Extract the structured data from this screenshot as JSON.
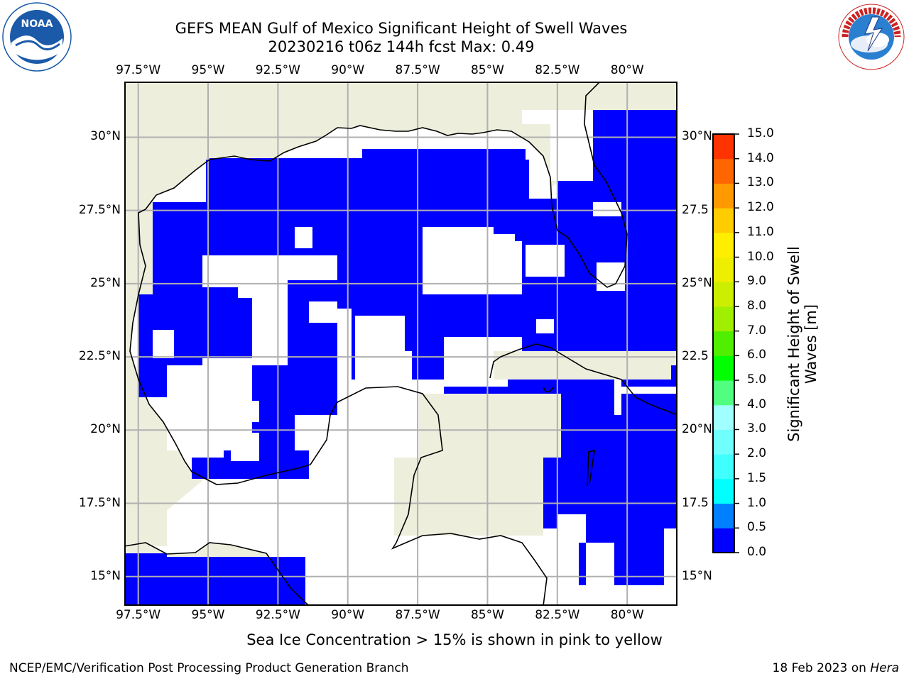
{
  "title": {
    "line1": "GEFS MEAN Gulf of Mexico Significant Height of Swell Waves",
    "line2": "20230216 t06z 144h fcst   Max: 0.49"
  },
  "map": {
    "lon_labels": [
      "97.5°W",
      "95°W",
      "92.5°W",
      "90°W",
      "87.5°W",
      "85°W",
      "82.5°W",
      "80°W"
    ],
    "lat_labels": [
      "30°N",
      "27.5°N",
      "25°N",
      "22.5°N",
      "20°N",
      "17.5°N",
      "15°N"
    ],
    "lat_labels_right": [
      "30°N",
      "27.5",
      "25°N",
      "22.5",
      "20°N",
      "17.5",
      "15°N"
    ],
    "lon_values": [
      -97.5,
      -95,
      -92.5,
      -90,
      -87.5,
      -85,
      -82.5,
      -80
    ],
    "lat_values": [
      30,
      27.5,
      25,
      22.5,
      20,
      17.5,
      15
    ],
    "extent": {
      "lon_min": -98,
      "lon_max": -78.2,
      "lat_min": 14,
      "lat_max": 31.9
    },
    "land_color": "#eeeedd",
    "ocean_fill_color": "#0000ff",
    "grid_color": "#b0b0b0"
  },
  "colorbar": {
    "label": "Significant Height of Swell Waves [m]",
    "ticks": [
      "0.0",
      "0.5",
      "1.0",
      "1.5",
      "2.0",
      "3.0",
      "4.0",
      "5.0",
      "6.0",
      "7.0",
      "8.0",
      "9.0",
      "10.0",
      "11.0",
      "12.0",
      "13.0",
      "14.0",
      "15.0"
    ],
    "colors": [
      "#0000ff",
      "#0080ff",
      "#00ffff",
      "#40ffff",
      "#70ffff",
      "#a0ffff",
      "#50ff80",
      "#00ff00",
      "#50ee00",
      "#a0ee00",
      "#ccee00",
      "#eeee00",
      "#ffee00",
      "#ffcc00",
      "#ff9900",
      "#ff6600",
      "#ff3300"
    ]
  },
  "subtitle": "Sea Ice Concentration > 15% is shown in pink to yellow",
  "footer": {
    "left": "NCEP/EMC/Verification Post Processing Product Generation Branch",
    "right_date": "18 Feb 2023 on ",
    "right_machine": "Hera"
  },
  "logos": {
    "noaa_text": "NOAA",
    "noaa_ring_text": "NATIONAL OCEANIC AND ATMOSPHERIC ADMINISTRATION • U.S. DEPARTMENT OF COMMERCE",
    "nws_ring_text": "NATIONAL WEATHER SERVICE"
  }
}
